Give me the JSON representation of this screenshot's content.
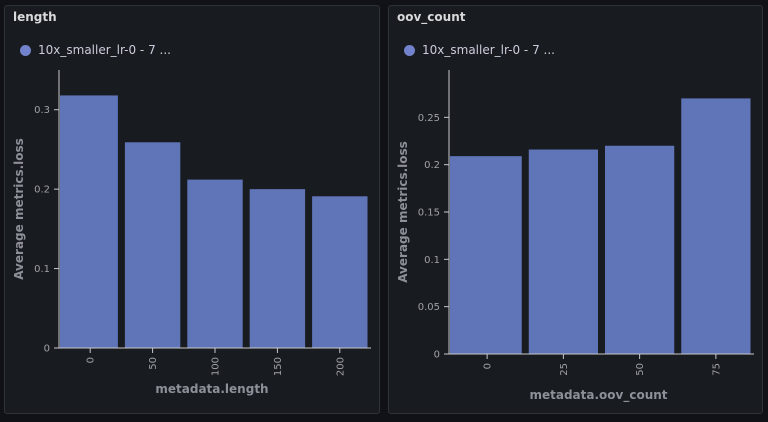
{
  "colors": {
    "bar": "#6074b8",
    "bar_legend": "#7382cc",
    "axis": "#c7c8cc",
    "background": "#181b1f"
  },
  "chart_data": [
    {
      "type": "bar",
      "title": "length",
      "legend": "10x_smaller_lr-0 - 7 ...",
      "xlabel": "metadata.length",
      "ylabel": "Average metrics.loss",
      "categories": [
        "0",
        "50",
        "100",
        "150",
        "200"
      ],
      "values": [
        0.318,
        0.259,
        0.212,
        0.2,
        0.191
      ],
      "yticks": [
        0,
        0.1,
        0.2,
        0.3
      ],
      "ylim": [
        0,
        0.35
      ],
      "grid": false
    },
    {
      "type": "bar",
      "title": "oov_count",
      "legend": "10x_smaller_lr-0 - 7 ...",
      "xlabel": "metadata.oov_count",
      "ylabel": "Average metrics.loss",
      "categories": [
        "0",
        "25",
        "50",
        "75"
      ],
      "values": [
        0.209,
        0.216,
        0.22,
        0.27
      ],
      "yticks": [
        0,
        0.05,
        0.1,
        0.15,
        0.2,
        0.25
      ],
      "ylim": [
        0,
        0.3
      ],
      "grid": false
    }
  ]
}
